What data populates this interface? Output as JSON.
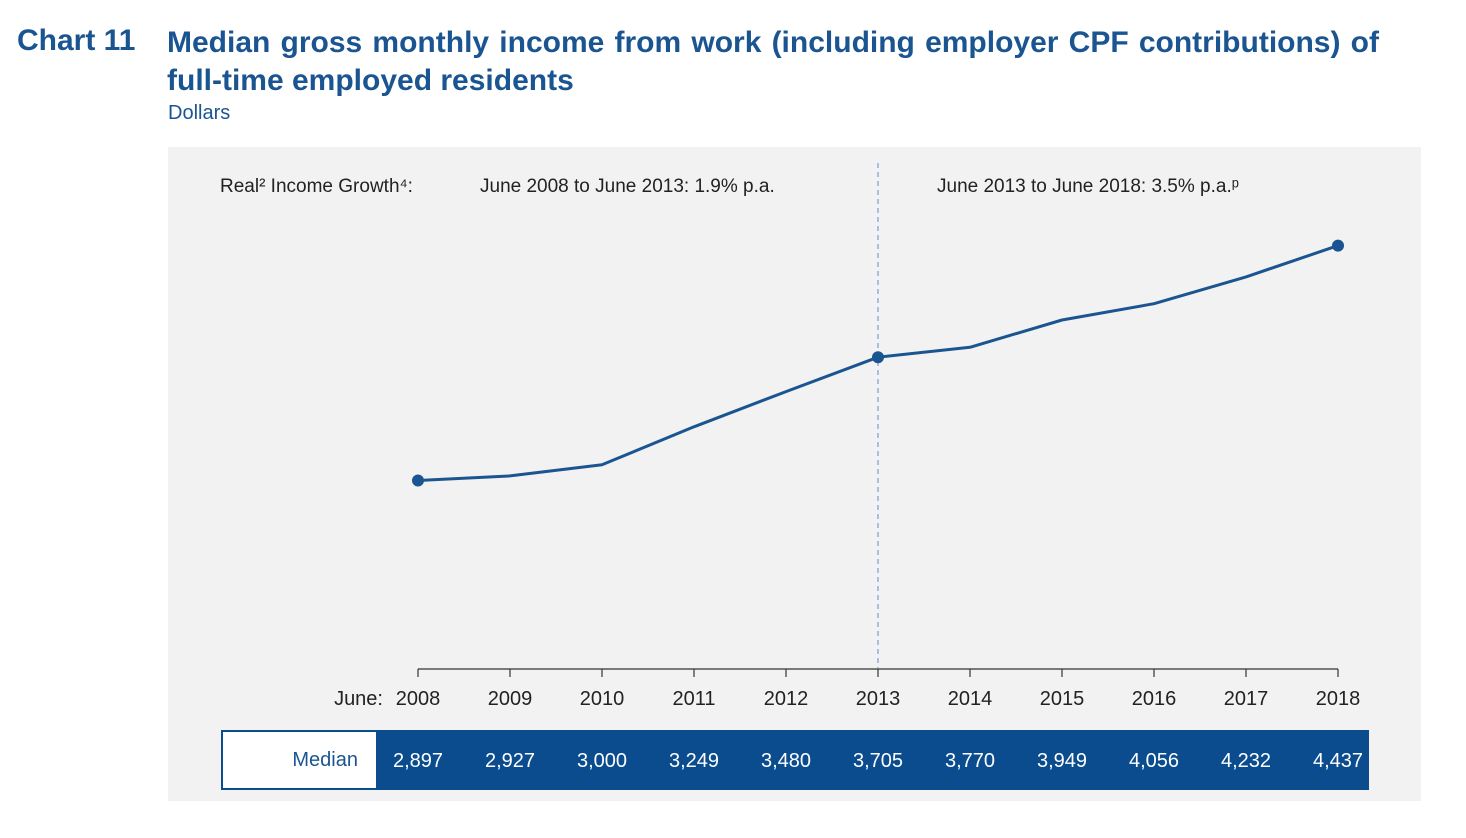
{
  "header": {
    "chart_label": "Chart 11",
    "title": "Median gross monthly income from work (including employer CPF contributions) of full-time employed residents",
    "subtitle": "Dollars"
  },
  "annotations": {
    "growth_label": "Real² Income Growth⁴:",
    "period1": "June 2008 to June 2013: 1.9% p.a.",
    "period2": "June 2013 to June 2018: 3.5% p.a.ᵖ"
  },
  "axis": {
    "prefix": "June:"
  },
  "table": {
    "row_label": "Median",
    "values": [
      "2,897",
      "2,927",
      "3,000",
      "3,249",
      "3,480",
      "3,705",
      "3,770",
      "3,949",
      "4,056",
      "4,232",
      "4,437"
    ]
  },
  "colors": {
    "line": "#1b5591",
    "table_fill": "#0b4c8f",
    "plot_background": "#f2f2f2",
    "divider": "#8fb0d8"
  },
  "chart_data": {
    "type": "line",
    "title": "Median gross monthly income from work (including employer CPF contributions) of full-time employed residents",
    "ylabel": "Dollars",
    "x": [
      "2008",
      "2009",
      "2010",
      "2011",
      "2012",
      "2013",
      "2014",
      "2015",
      "2016",
      "2017",
      "2018"
    ],
    "series": [
      {
        "name": "Median",
        "values": [
          2897,
          2927,
          3000,
          3249,
          3480,
          3705,
          3770,
          3949,
          4056,
          4232,
          4437
        ]
      }
    ],
    "marked_points": [
      "2008",
      "2013",
      "2018"
    ],
    "divider_at": "2013",
    "ylim": [
      1700,
      4900
    ],
    "grid": false,
    "legend": "none"
  }
}
